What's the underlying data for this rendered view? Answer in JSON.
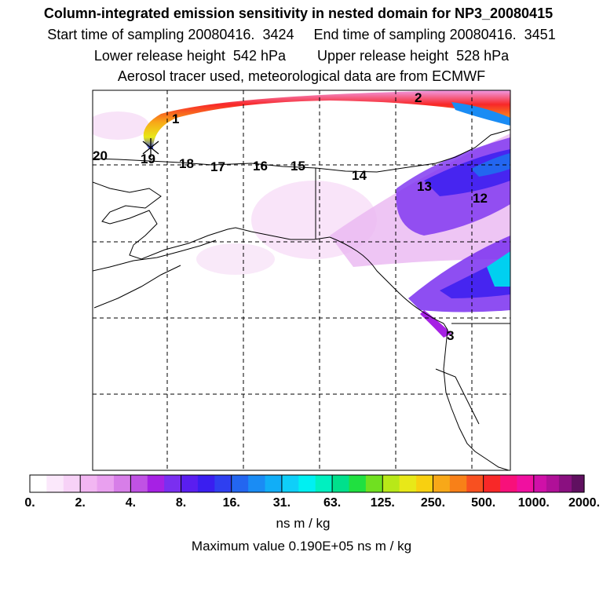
{
  "header": {
    "title": "Column-integrated emission sensitivity in nested domain for NP3_20080415",
    "line2": "Start time of sampling 20080416.  3424     End time of sampling 20080416.  3451",
    "line3": "Lower release height  542 hPa        Upper release height  528 hPa",
    "line4": "Aerosol tracer used, meteorological data are from ECMWF"
  },
  "map": {
    "track_labels": [
      "1",
      "2",
      "3",
      "12",
      "13",
      "14",
      "15",
      "16",
      "17",
      "18",
      "19",
      "20"
    ],
    "release_marker": "release-point"
  },
  "colorbar": {
    "tick_labels": [
      "0.",
      "2.",
      "4.",
      "8.",
      "16.",
      "31.",
      "63.",
      "125.",
      "250.",
      "500.",
      "1000.",
      "2000."
    ],
    "colors": [
      "#ffffff",
      "#fbe8fb",
      "#f7d2f7",
      "#f2b6f2",
      "#e9a0ef",
      "#d77ee8",
      "#c052e4",
      "#a621e4",
      "#7a2ff0",
      "#5a1ef0",
      "#3a1ef0",
      "#2f3ff0",
      "#2366f0",
      "#1a8cf4",
      "#11aef7",
      "#0fcff9",
      "#00f0f2",
      "#00f0c0",
      "#00e08c",
      "#20e040",
      "#70e020",
      "#b8e818",
      "#e8e818",
      "#f8d010",
      "#f8a818",
      "#f88018",
      "#f85020",
      "#f82828",
      "#f8107a",
      "#f010a0",
      "#d010a8",
      "#b01098",
      "#8a1080",
      "#601060"
    ],
    "units": "ns m / kg"
  },
  "footer": {
    "max_value": "Maximum value  0.190E+05 ns m / kg"
  }
}
